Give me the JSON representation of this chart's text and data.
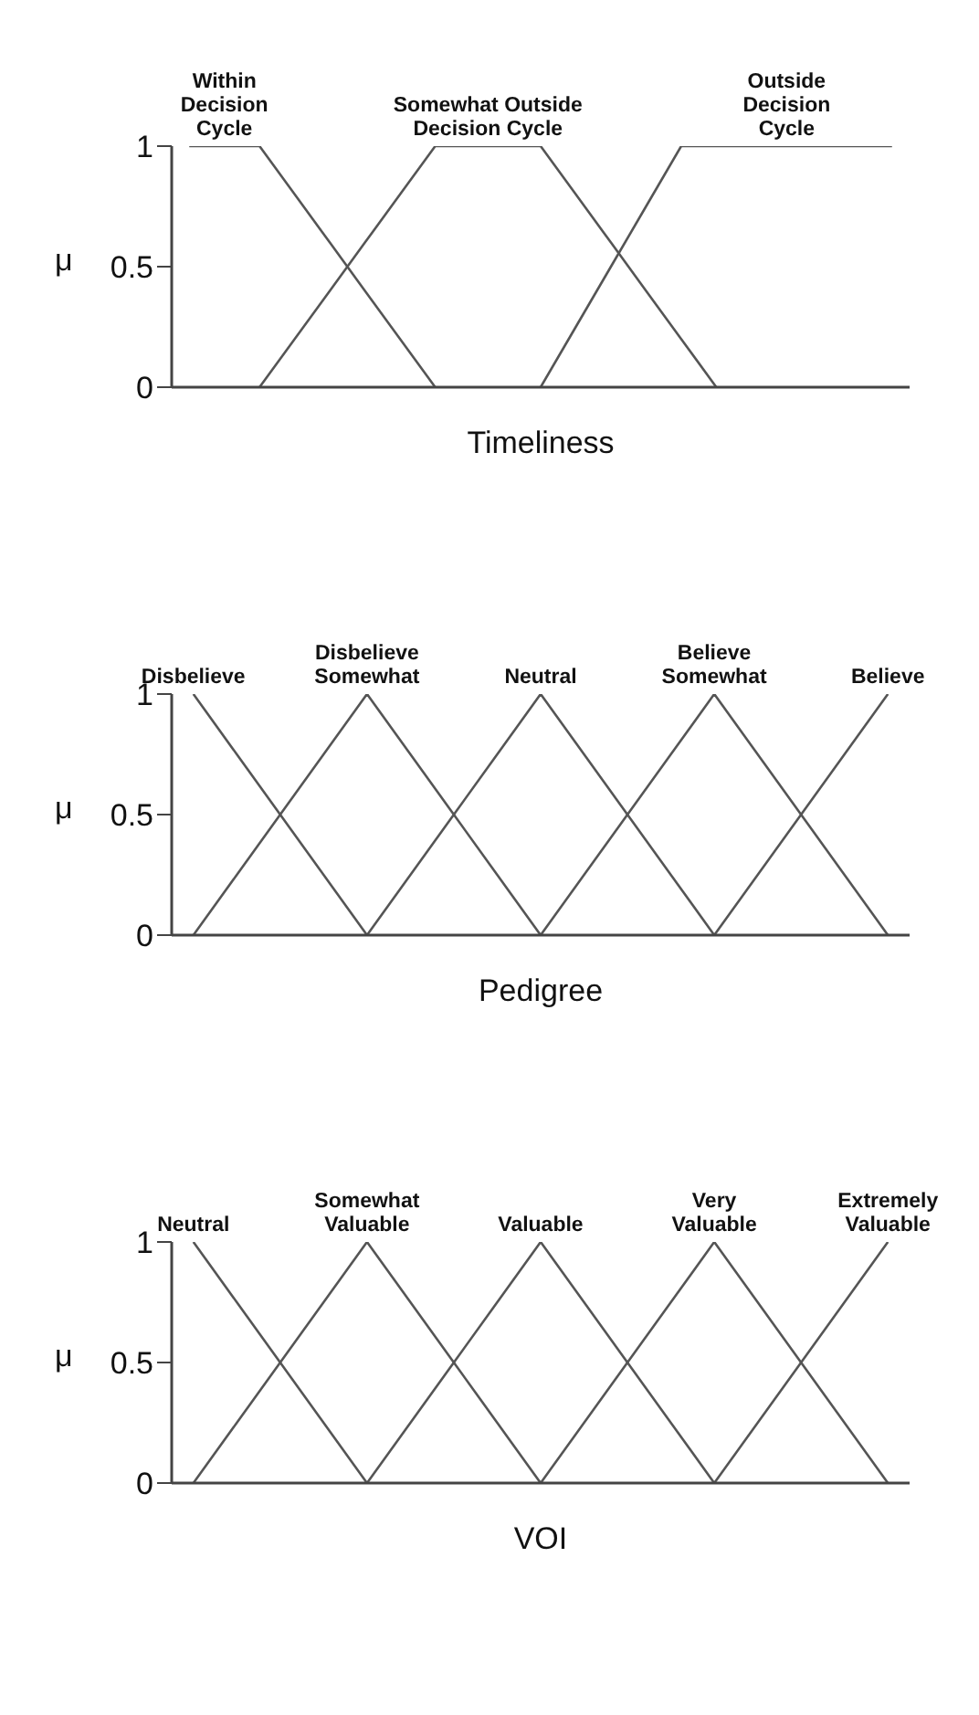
{
  "chart_data": [
    {
      "type": "line",
      "xlabel": "Timeliness",
      "ylabel": "μ",
      "categories": [
        null,
        null,
        null,
        null,
        null,
        null,
        null,
        null,
        null,
        null,
        null,
        null,
        null,
        null,
        null,
        null,
        null,
        null,
        null,
        null,
        null
      ],
      "ylim": [
        0,
        1
      ],
      "yticks": [
        0,
        0.5,
        1
      ],
      "marker": "none",
      "line_style": "solid",
      "series": [
        {
          "name": "Within\nDecision\nCycle",
          "color": "#555555",
          "values": [
            1,
            1,
            1,
            0.8,
            0.6,
            0.4,
            0.2,
            0,
            null,
            null,
            null,
            null,
            null,
            null,
            null,
            null,
            null,
            null,
            null,
            null,
            null
          ]
        },
        {
          "name": "Somewhat Outside\nDecision Cycle",
          "color": "#555555",
          "values": [
            null,
            null,
            0,
            0.2,
            0.4,
            0.6,
            0.8,
            1,
            1,
            1,
            1,
            0.8,
            0.6,
            0.4,
            0.2,
            0,
            null,
            null,
            null,
            null,
            null
          ]
        },
        {
          "name": "Outside\nDecision\nCycle",
          "color": "#555555",
          "values": [
            null,
            null,
            null,
            null,
            null,
            null,
            null,
            null,
            null,
            null,
            0,
            0.25,
            0.5,
            0.75,
            1,
            1,
            1,
            1,
            1,
            1,
            1
          ]
        }
      ]
    },
    {
      "type": "line",
      "xlabel": "Pedigree",
      "ylabel": "μ",
      "categories": [
        null,
        null,
        null,
        null,
        null,
        null,
        null,
        null,
        null,
        null,
        null,
        null,
        null,
        null,
        null,
        null,
        null
      ],
      "ylim": [
        0,
        1
      ],
      "yticks": [
        0,
        0.5,
        1
      ],
      "marker": "none",
      "line_style": "solid",
      "series": [
        {
          "name": "Disbelieve",
          "color": "#555555",
          "values": [
            1,
            0.75,
            0.5,
            0.25,
            0,
            null,
            null,
            null,
            null,
            null,
            null,
            null,
            null,
            null,
            null,
            null,
            null
          ]
        },
        {
          "name": "Disbelieve\nSomewhat",
          "color": "#555555",
          "values": [
            0,
            0.25,
            0.5,
            0.75,
            1,
            0.75,
            0.5,
            0.25,
            0,
            null,
            null,
            null,
            null,
            null,
            null,
            null,
            null
          ]
        },
        {
          "name": "Neutral",
          "color": "#555555",
          "values": [
            null,
            null,
            null,
            null,
            0,
            0.25,
            0.5,
            0.75,
            1,
            0.75,
            0.5,
            0.25,
            0,
            null,
            null,
            null,
            null
          ]
        },
        {
          "name": "Believe\nSomewhat",
          "color": "#555555",
          "values": [
            null,
            null,
            null,
            null,
            null,
            null,
            null,
            null,
            0,
            0.25,
            0.5,
            0.75,
            1,
            0.75,
            0.5,
            0.25,
            0
          ]
        },
        {
          "name": "Believe",
          "color": "#555555",
          "values": [
            null,
            null,
            null,
            null,
            null,
            null,
            null,
            null,
            null,
            null,
            null,
            null,
            0,
            0.25,
            0.5,
            0.75,
            1
          ]
        }
      ]
    },
    {
      "type": "line",
      "xlabel": "VOI",
      "ylabel": "μ",
      "categories": [
        null,
        null,
        null,
        null,
        null,
        null,
        null,
        null,
        null,
        null,
        null,
        null,
        null,
        null,
        null,
        null,
        null
      ],
      "ylim": [
        0,
        1
      ],
      "yticks": [
        0,
        0.5,
        1
      ],
      "marker": "none",
      "line_style": "solid",
      "series": [
        {
          "name": "Neutral",
          "color": "#555555",
          "values": [
            1,
            0.75,
            0.5,
            0.25,
            0,
            null,
            null,
            null,
            null,
            null,
            null,
            null,
            null,
            null,
            null,
            null,
            null
          ]
        },
        {
          "name": "Somewhat\nValuable",
          "color": "#555555",
          "values": [
            0,
            0.25,
            0.5,
            0.75,
            1,
            0.75,
            0.5,
            0.25,
            0,
            null,
            null,
            null,
            null,
            null,
            null,
            null,
            null
          ]
        },
        {
          "name": "Valuable",
          "color": "#555555",
          "values": [
            null,
            null,
            null,
            null,
            0,
            0.25,
            0.5,
            0.75,
            1,
            0.75,
            0.5,
            0.25,
            0,
            null,
            null,
            null,
            null
          ]
        },
        {
          "name": "Very\nValuable",
          "color": "#555555",
          "values": [
            null,
            null,
            null,
            null,
            null,
            null,
            null,
            null,
            0,
            0.25,
            0.5,
            0.75,
            1,
            0.75,
            0.5,
            0.25,
            0
          ]
        },
        {
          "name": "Extremely\nValuable",
          "color": "#555555",
          "values": [
            null,
            null,
            null,
            null,
            null,
            null,
            null,
            null,
            null,
            null,
            null,
            null,
            0,
            0.25,
            0.5,
            0.75,
            1
          ]
        }
      ]
    }
  ]
}
